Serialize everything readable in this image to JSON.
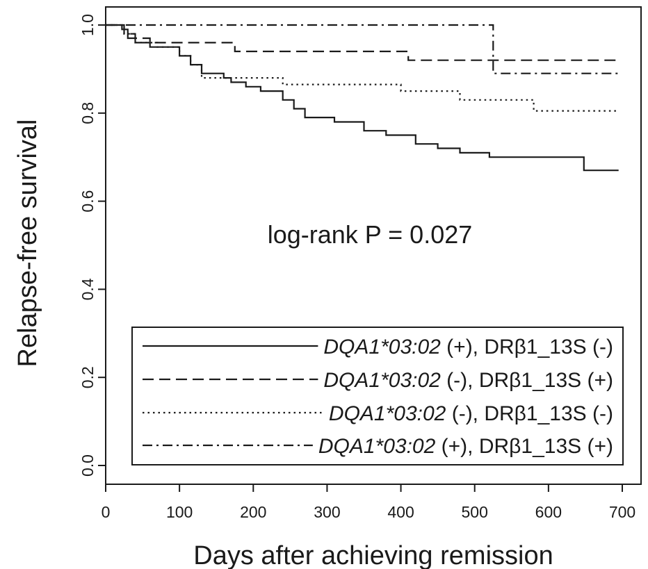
{
  "chart_data": {
    "type": "line",
    "title": "",
    "xlabel": "Days after achieving remission",
    "ylabel": "Relapse-free survival",
    "xlim": [
      0,
      700
    ],
    "ylim": [
      0.0,
      1.0
    ],
    "x_ticks": [
      0,
      100,
      200,
      300,
      400,
      500,
      600,
      700
    ],
    "y_ticks": [
      0.0,
      0.2,
      0.4,
      0.6,
      0.8,
      1.0
    ],
    "x_tick_labels": [
      "0",
      "100",
      "200",
      "300",
      "400",
      "500",
      "600",
      "700"
    ],
    "y_tick_labels": [
      "0.0",
      "0.2",
      "0.4",
      "0.6",
      "0.8",
      "1.0"
    ],
    "grid": false,
    "step": true,
    "annotation": "log-rank P = 0.027",
    "legend_position": "bottom-right",
    "series": [
      {
        "name_italic": "DQA1*03:02",
        "name_rest": " (+), DRβ1_13S (-)",
        "style": "solid",
        "x": [
          0,
          22,
          30,
          40,
          60,
          100,
          115,
          130,
          160,
          170,
          190,
          210,
          240,
          255,
          270,
          310,
          350,
          380,
          420,
          450,
          480,
          520,
          560,
          600,
          640,
          648,
          695
        ],
        "y": [
          1.0,
          0.99,
          0.97,
          0.96,
          0.95,
          0.93,
          0.91,
          0.89,
          0.88,
          0.87,
          0.86,
          0.85,
          0.83,
          0.81,
          0.79,
          0.78,
          0.76,
          0.75,
          0.73,
          0.72,
          0.71,
          0.7,
          0.7,
          0.7,
          0.7,
          0.67,
          0.67
        ]
      },
      {
        "name_italic": "DQA1*03:02",
        "name_rest": " (-),  DRβ1_13S (+)",
        "style": "dashed",
        "x": [
          0,
          25,
          40,
          60,
          90,
          110,
          175,
          250,
          300,
          330,
          350,
          410,
          480,
          540,
          600,
          695
        ],
        "y": [
          1.0,
          0.98,
          0.97,
          0.96,
          0.96,
          0.96,
          0.94,
          0.94,
          0.94,
          0.94,
          0.94,
          0.92,
          0.92,
          0.92,
          0.92,
          0.92
        ]
      },
      {
        "name_italic": "DQA1*03:02",
        "name_rest": " (-),  DRβ1_13S (-)",
        "style": "dotted",
        "x": [
          0,
          25,
          40,
          70,
          100,
          115,
          130,
          170,
          200,
          240,
          280,
          320,
          400,
          440,
          480,
          540,
          580,
          695
        ],
        "y": [
          1.0,
          0.98,
          0.96,
          0.95,
          0.93,
          0.91,
          0.88,
          0.88,
          0.88,
          0.865,
          0.865,
          0.865,
          0.85,
          0.85,
          0.83,
          0.83,
          0.805,
          0.805
        ]
      },
      {
        "name_italic": "DQA1*03:02",
        "name_rest": " (+), DRβ1_13S (+)",
        "style": "dashdot",
        "x": [
          0,
          30,
          100,
          200,
          300,
          400,
          500,
          520,
          525,
          600,
          695
        ],
        "y": [
          1.0,
          1.0,
          1.0,
          1.0,
          1.0,
          1.0,
          1.0,
          1.0,
          0.89,
          0.89,
          0.89
        ]
      }
    ]
  }
}
